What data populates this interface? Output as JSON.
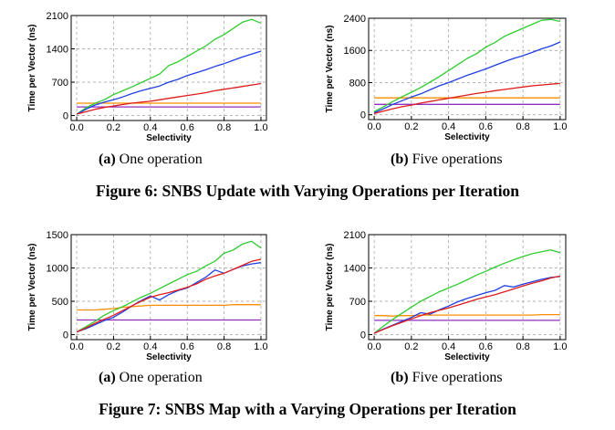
{
  "figures": [
    {
      "caption": "Figure 6: SNBS Update with Varying Operations per Iteration"
    },
    {
      "caption": "Figure 7: SNBS Map with a Varying Operations per Iteration"
    }
  ],
  "series_colors": {
    "green": "#2ecc2e",
    "blue": "#1f3fe0",
    "red": "#e01b1b",
    "orange": "#ff8c00",
    "purple": "#8e2fbf"
  },
  "chart_data": [
    {
      "type": "line",
      "subcaption_label": "(a)",
      "subcaption_text": "One operation",
      "xlabel": "Selectivity",
      "ylabel": "Time per Vector (ns)",
      "xlim": [
        0,
        1
      ],
      "ylim": [
        0,
        2100
      ],
      "xticks": [
        0.0,
        0.2,
        0.4,
        0.6,
        0.8,
        1.0
      ],
      "yticks": [
        0,
        700,
        1400,
        2100
      ],
      "x": [
        0.0,
        0.05,
        0.1,
        0.15,
        0.2,
        0.25,
        0.3,
        0.35,
        0.4,
        0.45,
        0.5,
        0.55,
        0.6,
        0.65,
        0.7,
        0.75,
        0.8,
        0.85,
        0.9,
        0.95,
        1.0
      ],
      "series": [
        {
          "color": "#2ecc2e",
          "values": [
            30,
            160,
            260,
            330,
            440,
            520,
            600,
            690,
            780,
            870,
            1050,
            1130,
            1240,
            1350,
            1460,
            1600,
            1700,
            1830,
            1960,
            2020,
            1940
          ]
        },
        {
          "color": "#1f3fe0",
          "values": [
            30,
            130,
            220,
            280,
            330,
            390,
            460,
            520,
            570,
            620,
            700,
            760,
            840,
            900,
            960,
            1030,
            1090,
            1160,
            1230,
            1290,
            1350
          ]
        },
        {
          "color": "#e01b1b",
          "values": [
            30,
            80,
            130,
            170,
            200,
            230,
            260,
            280,
            300,
            330,
            360,
            390,
            420,
            450,
            480,
            520,
            550,
            580,
            610,
            640,
            670
          ]
        },
        {
          "color": "#ff8c00",
          "values": [
            260,
            260,
            260,
            260,
            260,
            260,
            260,
            260,
            260,
            260,
            260,
            260,
            260,
            260,
            260,
            260,
            260,
            260,
            260,
            260,
            260
          ]
        },
        {
          "color": "#8e2fbf",
          "values": [
            180,
            180,
            180,
            180,
            180,
            180,
            180,
            180,
            180,
            180,
            180,
            180,
            180,
            180,
            180,
            180,
            180,
            180,
            180,
            180,
            180
          ]
        }
      ]
    },
    {
      "type": "line",
      "subcaption_label": "(b)",
      "subcaption_text": "Five operations",
      "xlabel": "Selectivity",
      "ylabel": "Time per Vector (ns)",
      "xlim": [
        0,
        1
      ],
      "ylim": [
        0,
        2400
      ],
      "xticks": [
        0.0,
        0.2,
        0.4,
        0.6,
        0.8,
        1.0
      ],
      "yticks": [
        0,
        800,
        1600,
        2400
      ],
      "x": [
        0.0,
        0.05,
        0.1,
        0.15,
        0.2,
        0.25,
        0.3,
        0.35,
        0.4,
        0.45,
        0.5,
        0.55,
        0.6,
        0.65,
        0.7,
        0.75,
        0.8,
        0.85,
        0.9,
        0.95,
        1.0
      ],
      "series": [
        {
          "color": "#2ecc2e",
          "values": [
            80,
            200,
            330,
            450,
            560,
            680,
            810,
            950,
            1100,
            1250,
            1400,
            1520,
            1680,
            1800,
            1950,
            2050,
            2150,
            2250,
            2350,
            2370,
            2320
          ]
        },
        {
          "color": "#1f3fe0",
          "values": [
            50,
            150,
            260,
            350,
            440,
            520,
            620,
            720,
            800,
            890,
            980,
            1060,
            1140,
            1230,
            1320,
            1400,
            1470,
            1550,
            1640,
            1710,
            1810
          ]
        },
        {
          "color": "#e01b1b",
          "values": [
            30,
            90,
            150,
            200,
            240,
            290,
            330,
            370,
            410,
            450,
            490,
            530,
            560,
            600,
            630,
            660,
            690,
            720,
            740,
            760,
            780
          ]
        },
        {
          "color": "#ff8c00",
          "values": [
            420,
            420,
            420,
            420,
            420,
            420,
            420,
            420,
            420,
            420,
            420,
            420,
            420,
            420,
            420,
            420,
            420,
            420,
            420,
            420,
            420
          ]
        },
        {
          "color": "#8e2fbf",
          "values": [
            260,
            260,
            260,
            260,
            260,
            260,
            260,
            260,
            260,
            260,
            260,
            260,
            260,
            260,
            260,
            260,
            260,
            260,
            260,
            260,
            260
          ]
        }
      ]
    },
    {
      "type": "line",
      "subcaption_label": "(a)",
      "subcaption_text": "One operation",
      "xlabel": "Selectivity",
      "ylabel": "Time per Vector (ns)",
      "xlim": [
        0,
        1
      ],
      "ylim": [
        0,
        1500
      ],
      "xticks": [
        0.0,
        0.2,
        0.4,
        0.6,
        0.8,
        1.0
      ],
      "yticks": [
        0,
        500,
        1000,
        1500
      ],
      "x": [
        0.0,
        0.05,
        0.1,
        0.15,
        0.2,
        0.25,
        0.3,
        0.35,
        0.4,
        0.45,
        0.5,
        0.55,
        0.6,
        0.65,
        0.7,
        0.75,
        0.8,
        0.85,
        0.9,
        0.95,
        1.0
      ],
      "series": [
        {
          "color": "#2ecc2e",
          "values": [
            40,
            120,
            200,
            290,
            360,
            420,
            490,
            560,
            620,
            690,
            760,
            830,
            900,
            950,
            1030,
            1100,
            1220,
            1270,
            1360,
            1400,
            1300
          ]
        },
        {
          "color": "#1f3fe0",
          "values": [
            40,
            90,
            150,
            210,
            260,
            340,
            430,
            510,
            580,
            520,
            600,
            660,
            700,
            780,
            860,
            970,
            920,
            980,
            1030,
            1060,
            1080
          ]
        },
        {
          "color": "#e01b1b",
          "values": [
            40,
            100,
            170,
            230,
            290,
            360,
            430,
            500,
            560,
            600,
            630,
            670,
            710,
            760,
            830,
            880,
            920,
            980,
            1040,
            1100,
            1130
          ]
        },
        {
          "color": "#ff8c00",
          "values": [
            370,
            370,
            370,
            380,
            390,
            410,
            420,
            430,
            440,
            440,
            440,
            440,
            440,
            440,
            440,
            440,
            440,
            450,
            450,
            450,
            450
          ]
        },
        {
          "color": "#8e2fbf",
          "values": [
            220,
            220,
            220,
            220,
            220,
            220,
            220,
            220,
            220,
            220,
            220,
            220,
            220,
            220,
            220,
            220,
            220,
            220,
            220,
            220,
            220
          ]
        }
      ]
    },
    {
      "type": "line",
      "subcaption_label": "(b)",
      "subcaption_text": "Five operations",
      "xlabel": "Selectivity",
      "ylabel": "Time per Vector (ns)",
      "xlim": [
        0,
        1
      ],
      "ylim": [
        0,
        2100
      ],
      "xticks": [
        0.0,
        0.2,
        0.4,
        0.6,
        0.8,
        1.0
      ],
      "yticks": [
        0,
        700,
        1400,
        2100
      ],
      "x": [
        0.0,
        0.05,
        0.1,
        0.15,
        0.2,
        0.25,
        0.3,
        0.35,
        0.4,
        0.45,
        0.5,
        0.55,
        0.6,
        0.65,
        0.7,
        0.75,
        0.8,
        0.85,
        0.9,
        0.95,
        1.0
      ],
      "series": [
        {
          "color": "#2ecc2e",
          "values": [
            30,
            180,
            320,
            450,
            580,
            700,
            800,
            900,
            980,
            1060,
            1150,
            1250,
            1330,
            1420,
            1500,
            1570,
            1640,
            1700,
            1740,
            1780,
            1720
          ]
        },
        {
          "color": "#1f3fe0",
          "values": [
            30,
            120,
            200,
            280,
            360,
            460,
            430,
            520,
            600,
            690,
            760,
            820,
            880,
            930,
            1030,
            1000,
            1060,
            1110,
            1160,
            1200,
            1220
          ]
        },
        {
          "color": "#e01b1b",
          "values": [
            30,
            110,
            190,
            260,
            330,
            400,
            460,
            510,
            560,
            620,
            680,
            740,
            790,
            840,
            900,
            960,
            1020,
            1080,
            1130,
            1190,
            1230
          ]
        },
        {
          "color": "#ff8c00",
          "values": [
            400,
            400,
            390,
            400,
            400,
            410,
            410,
            410,
            410,
            410,
            410,
            410,
            410,
            410,
            410,
            410,
            410,
            410,
            420,
            420,
            420
          ]
        },
        {
          "color": "#8e2fbf",
          "values": [
            300,
            300,
            300,
            300,
            300,
            300,
            300,
            300,
            300,
            300,
            300,
            300,
            300,
            300,
            300,
            300,
            300,
            300,
            300,
            300,
            300
          ]
        }
      ]
    }
  ]
}
